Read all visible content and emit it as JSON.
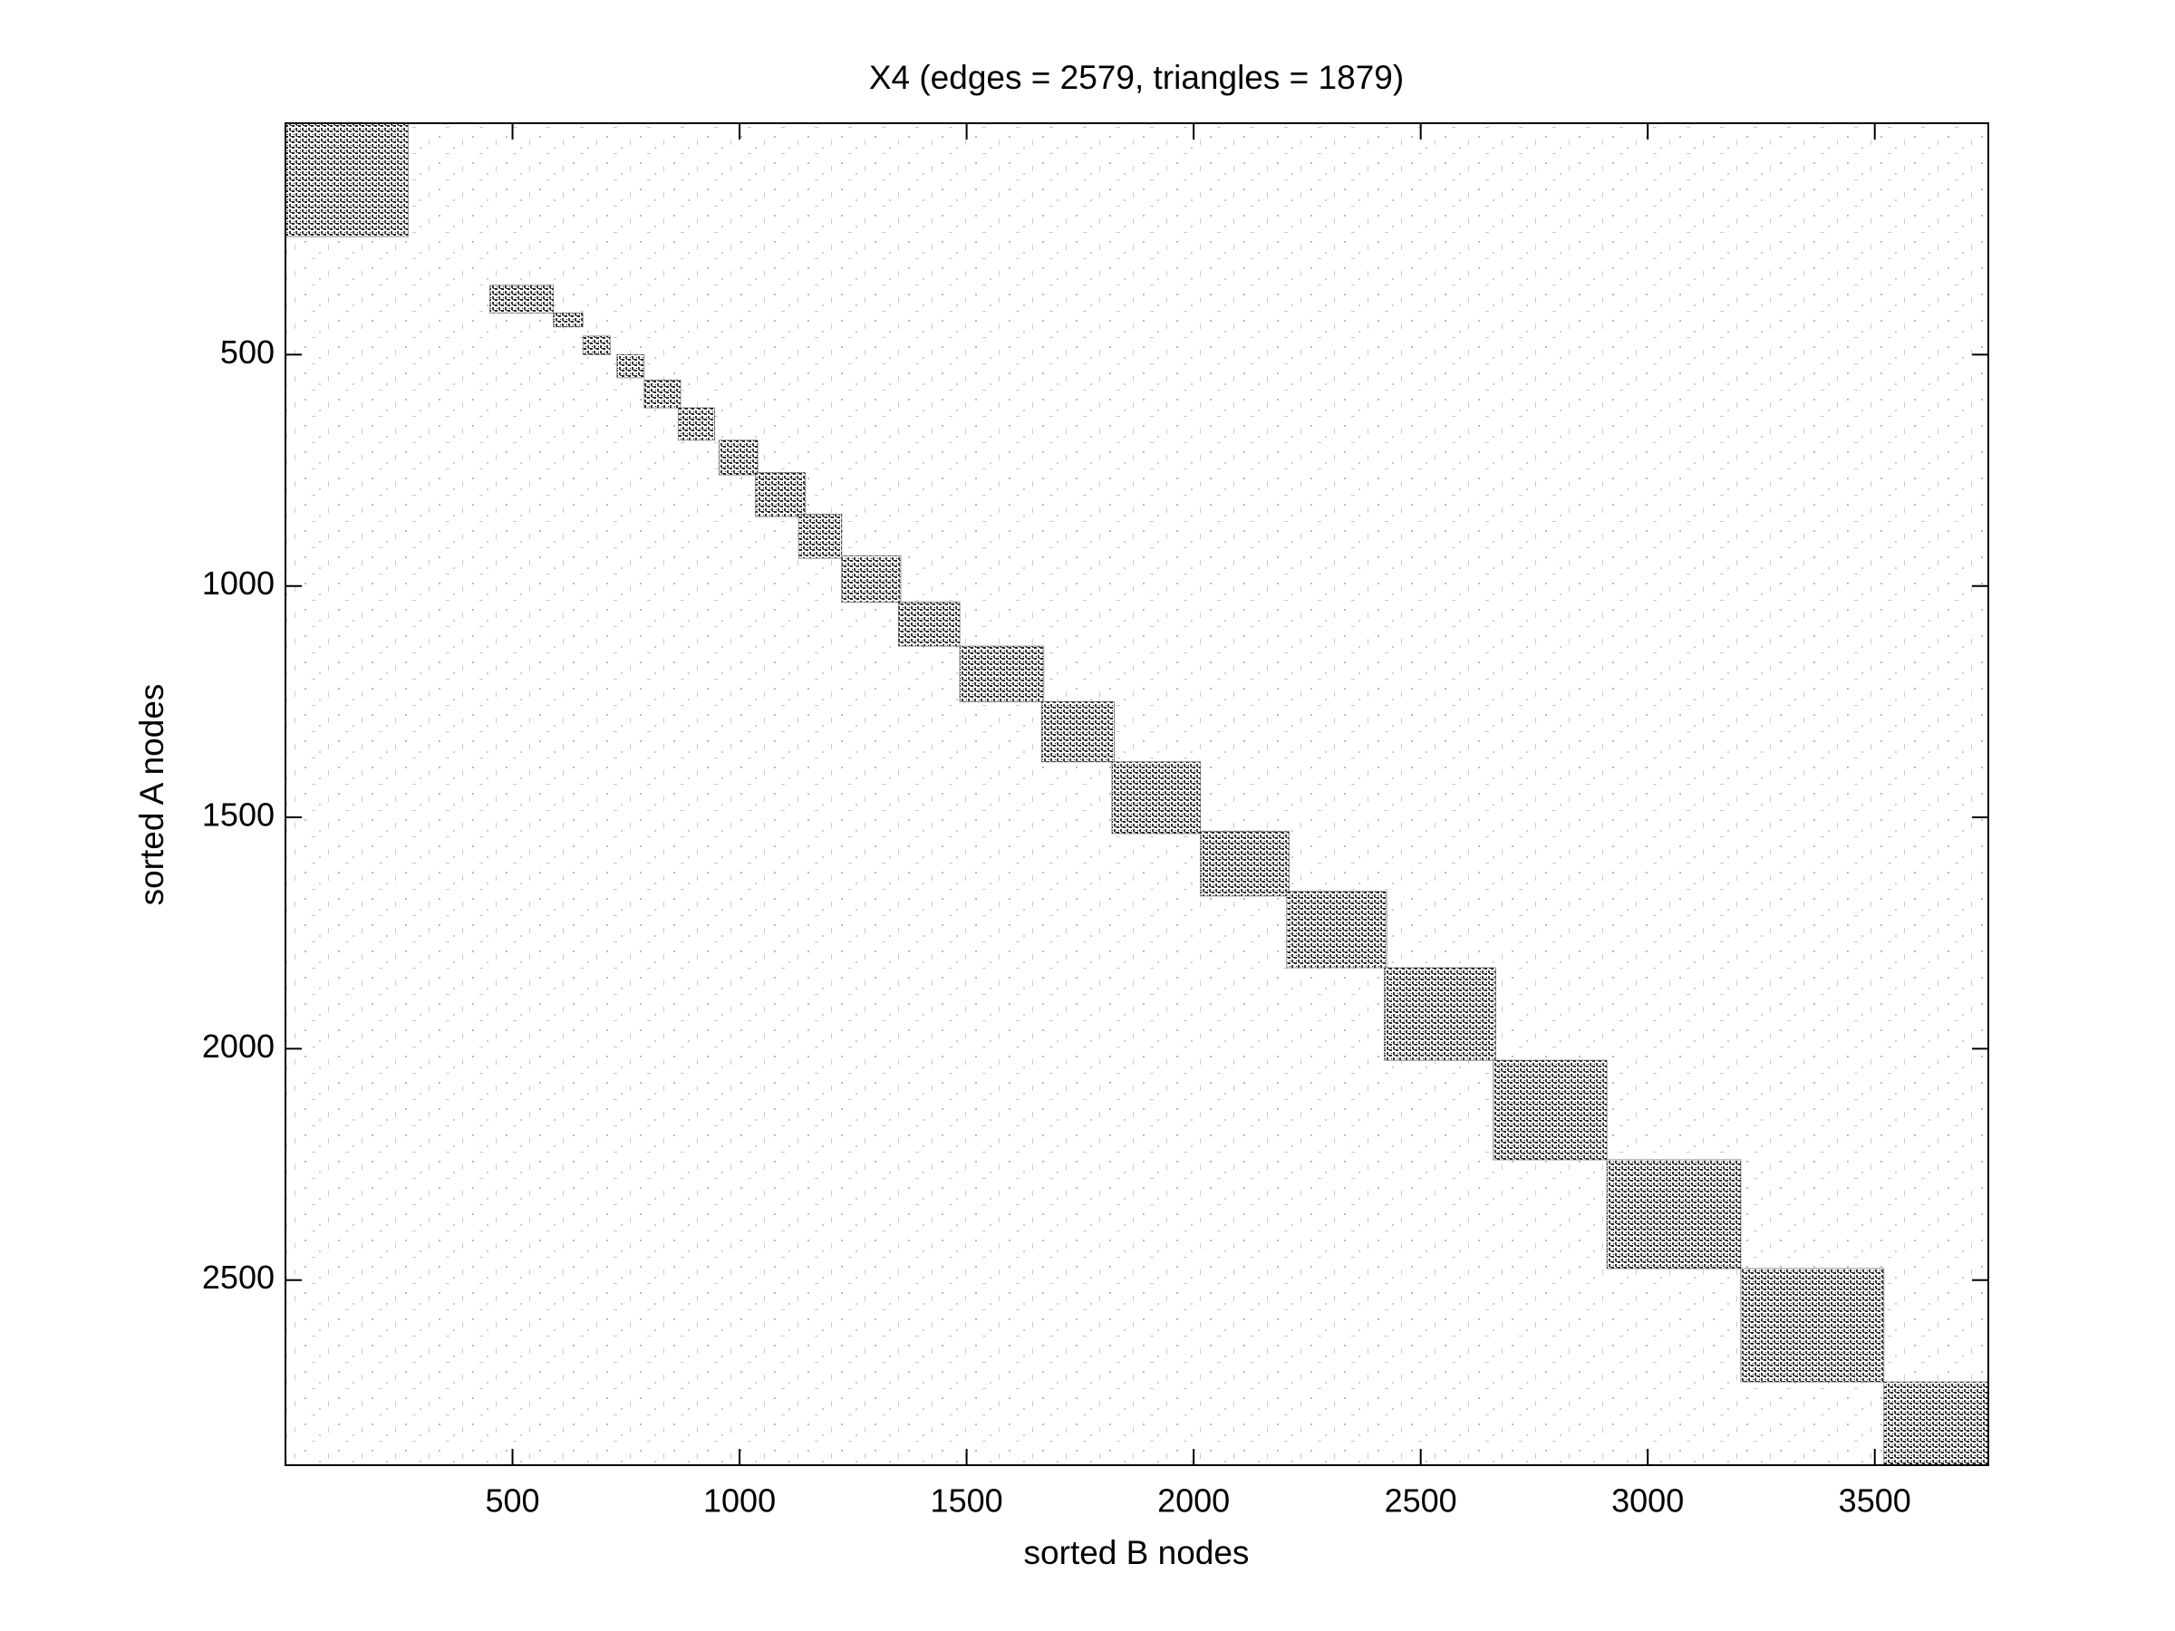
{
  "chart_data": {
    "type": "spy",
    "title": "X4 (edges = 2579, triangles = 1879)",
    "x_label": "sorted B nodes",
    "y_label": "sorted A nodes",
    "xlim": [
      0,
      3750
    ],
    "ylim": [
      0,
      2900
    ],
    "y_reversed": true,
    "xticks": [
      500,
      1000,
      1500,
      2000,
      2500,
      3000,
      3500
    ],
    "yticks": [
      500,
      1000,
      1500,
      2000,
      2500
    ],
    "color": "#222222",
    "blocks": [
      {
        "x": [
          0,
          270
        ],
        "y": [
          0,
          245
        ]
      },
      {
        "x": [
          450,
          590
        ],
        "y": [
          350,
          410
        ]
      },
      {
        "x": [
          590,
          655
        ],
        "y": [
          410,
          440
        ]
      },
      {
        "x": [
          655,
          715
        ],
        "y": [
          460,
          500
        ]
      },
      {
        "x": [
          730,
          790
        ],
        "y": [
          500,
          550
        ]
      },
      {
        "x": [
          790,
          870
        ],
        "y": [
          555,
          615
        ]
      },
      {
        "x": [
          865,
          945
        ],
        "y": [
          615,
          685
        ]
      },
      {
        "x": [
          955,
          1040
        ],
        "y": [
          685,
          760
        ]
      },
      {
        "x": [
          1035,
          1145
        ],
        "y": [
          755,
          850
        ]
      },
      {
        "x": [
          1130,
          1225
        ],
        "y": [
          845,
          940
        ]
      },
      {
        "x": [
          1225,
          1355
        ],
        "y": [
          935,
          1035
        ]
      },
      {
        "x": [
          1350,
          1485
        ],
        "y": [
          1035,
          1130
        ]
      },
      {
        "x": [
          1485,
          1670
        ],
        "y": [
          1130,
          1250
        ]
      },
      {
        "x": [
          1665,
          1825
        ],
        "y": [
          1250,
          1380
        ]
      },
      {
        "x": [
          1820,
          2015
        ],
        "y": [
          1380,
          1535
        ]
      },
      {
        "x": [
          2015,
          2210
        ],
        "y": [
          1530,
          1670
        ]
      },
      {
        "x": [
          2205,
          2425
        ],
        "y": [
          1660,
          1825
        ]
      },
      {
        "x": [
          2420,
          2665
        ],
        "y": [
          1825,
          2025
        ]
      },
      {
        "x": [
          2660,
          2910
        ],
        "y": [
          2025,
          2240
        ]
      },
      {
        "x": [
          2910,
          3205
        ],
        "y": [
          2240,
          2475
        ]
      },
      {
        "x": [
          3205,
          3520
        ],
        "y": [
          2475,
          2720
        ]
      },
      {
        "x": [
          3520,
          3750
        ],
        "y": [
          2720,
          2900
        ]
      }
    ]
  }
}
